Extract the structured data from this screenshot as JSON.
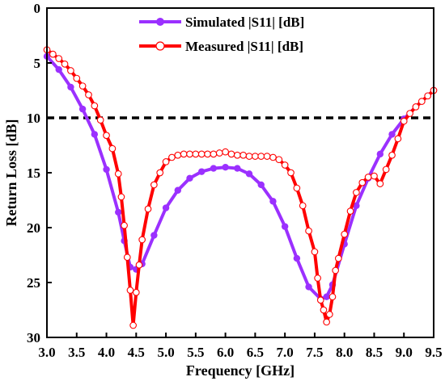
{
  "chart_data": {
    "type": "line",
    "title": "",
    "xlabel": "Frequency [GHz]",
    "ylabel": "Return Loss [dB]",
    "xlim": [
      3.0,
      9.5
    ],
    "ylim": [
      0,
      30
    ],
    "y_inverted": true,
    "x_ticks": [
      "3.0",
      "3.5",
      "4.0",
      "4.5",
      "5.0",
      "5.5",
      "6.0",
      "6.5",
      "7.0",
      "7.5",
      "8.0",
      "8.5",
      "9.0",
      "9.5"
    ],
    "y_ticks": [
      "0",
      "5",
      "10",
      "15",
      "20",
      "25",
      "30"
    ],
    "legend_position": "top",
    "reference_line": {
      "y": 10,
      "style": "dashed",
      "color": "#000000"
    },
    "series": [
      {
        "name": "Simulated |S11| [dB]",
        "color": "#9b30ff",
        "marker": "filled-circle",
        "x": [
          3.0,
          3.2,
          3.4,
          3.6,
          3.8,
          4.0,
          4.2,
          4.3,
          4.4,
          4.5,
          4.6,
          4.8,
          5.0,
          5.2,
          5.4,
          5.6,
          5.8,
          6.0,
          6.2,
          6.4,
          6.6,
          6.8,
          7.0,
          7.2,
          7.4,
          7.6,
          7.7,
          7.8,
          8.0,
          8.2,
          8.4,
          8.6,
          8.8,
          9.0,
          9.2,
          9.4,
          9.5
        ],
        "y": [
          4.4,
          5.6,
          7.2,
          9.2,
          11.5,
          14.7,
          18.6,
          21.2,
          23.6,
          23.8,
          23.3,
          20.7,
          18.2,
          16.6,
          15.5,
          14.9,
          14.6,
          14.5,
          14.6,
          15.1,
          16.1,
          17.6,
          19.9,
          22.8,
          25.4,
          26.5,
          26.3,
          25.2,
          21.5,
          18.0,
          15.5,
          13.3,
          11.5,
          10.1,
          9.0,
          8.0,
          7.5
        ]
      },
      {
        "name": "Measured |S11| [dB]",
        "color": "#ff0000",
        "marker": "open-circle",
        "x": [
          3.0,
          3.1,
          3.2,
          3.3,
          3.4,
          3.5,
          3.6,
          3.7,
          3.8,
          3.9,
          4.0,
          4.1,
          4.2,
          4.25,
          4.3,
          4.35,
          4.4,
          4.45,
          4.5,
          4.55,
          4.6,
          4.7,
          4.8,
          4.9,
          5.0,
          5.1,
          5.2,
          5.3,
          5.4,
          5.5,
          5.6,
          5.7,
          5.8,
          5.9,
          6.0,
          6.1,
          6.2,
          6.3,
          6.4,
          6.5,
          6.6,
          6.7,
          6.8,
          6.9,
          7.0,
          7.1,
          7.2,
          7.3,
          7.4,
          7.5,
          7.55,
          7.6,
          7.65,
          7.7,
          7.75,
          7.8,
          7.85,
          7.9,
          8.0,
          8.1,
          8.2,
          8.3,
          8.4,
          8.5,
          8.6,
          8.7,
          8.8,
          8.9,
          9.0,
          9.1,
          9.2,
          9.3,
          9.4,
          9.5
        ],
        "y": [
          3.8,
          4.2,
          4.6,
          5.1,
          5.7,
          6.4,
          7.1,
          7.9,
          8.9,
          10.2,
          11.6,
          12.8,
          15.1,
          17.2,
          19.8,
          22.7,
          25.7,
          28.9,
          25.9,
          23.4,
          21.1,
          18.3,
          16.1,
          15.0,
          14.0,
          13.6,
          13.4,
          13.3,
          13.3,
          13.3,
          13.3,
          13.3,
          13.3,
          13.2,
          13.1,
          13.3,
          13.4,
          13.4,
          13.5,
          13.5,
          13.5,
          13.5,
          13.6,
          13.8,
          14.3,
          15.0,
          16.4,
          18.0,
          20.3,
          22.2,
          24.6,
          26.6,
          27.5,
          28.6,
          27.9,
          26.3,
          23.9,
          22.8,
          20.6,
          18.5,
          16.8,
          15.9,
          15.4,
          15.3,
          16.0,
          14.7,
          13.4,
          11.9,
          10.3,
          9.6,
          9.0,
          8.5,
          8.0,
          7.5
        ]
      }
    ]
  }
}
